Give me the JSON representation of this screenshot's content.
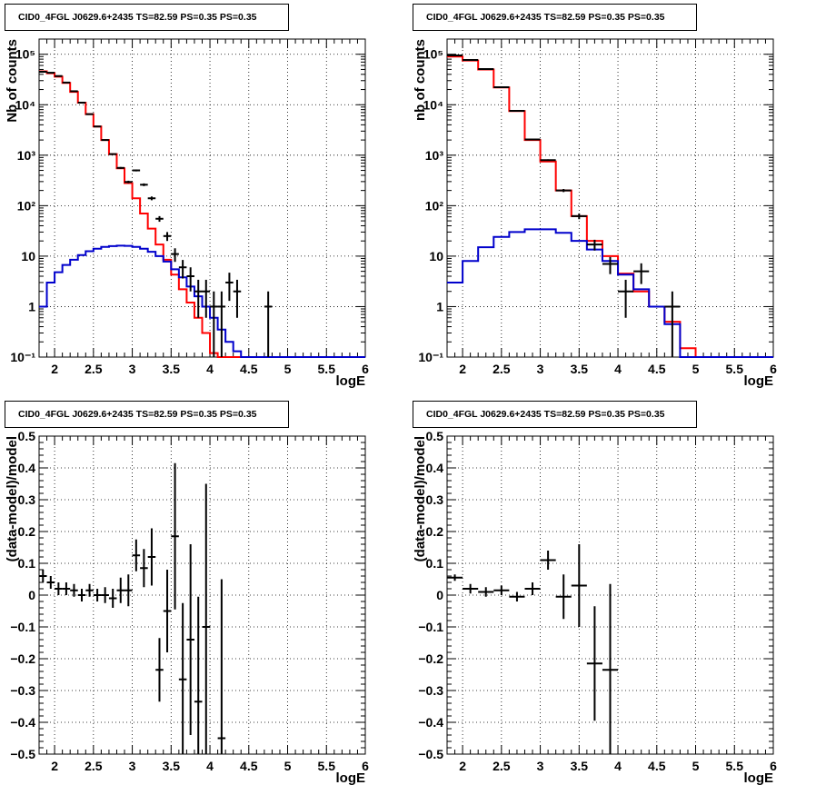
{
  "colors": {
    "data": "#000000",
    "total_model": "#ff0000",
    "component": "#0000cc",
    "grid": "#000000"
  },
  "chart_data": [
    {
      "type": "line",
      "title": "CID0_4FGL J0629.6+2435 TS=82.59 PS=0.35 PS=0.35",
      "xlabel": "logE",
      "ylabel": "Nb of counts",
      "xlim": [
        1.8,
        6.0
      ],
      "ylim": [
        0.1,
        200000
      ],
      "yscale": "log",
      "grid": true,
      "x_ticks": [
        "2",
        "2.5",
        "3",
        "3.5",
        "4",
        "4.5",
        "5",
        "5.5",
        "6"
      ],
      "y_ticks": [
        "10⁻¹",
        "1",
        "10",
        "10²",
        "10³",
        "10⁴",
        "10⁵"
      ],
      "series": [
        {
          "style": "hist",
          "color": "#ff0000",
          "bin_edges": [
            1.8,
            1.9,
            2.0,
            2.1,
            2.2,
            2.3,
            2.4,
            2.5,
            2.6,
            2.7,
            2.8,
            2.9,
            3.0,
            3.1,
            3.2,
            3.3,
            3.4,
            3.5,
            3.6,
            3.7,
            3.8,
            3.9,
            4.0,
            4.1,
            4.2,
            4.3,
            4.4,
            4.5,
            4.6,
            4.7,
            4.8,
            4.9,
            5.0,
            5.1,
            5.2,
            5.3,
            5.4,
            5.5,
            5.6,
            5.7,
            5.8,
            5.9,
            6.0
          ],
          "values": [
            46000,
            42000,
            36000,
            27000,
            18000,
            11000,
            6500,
            3700,
            2000,
            1050,
            550,
            280,
            140,
            70,
            35,
            17,
            8.5,
            4.3,
            2.2,
            1.2,
            0.6,
            0.3,
            0.12,
            0.1,
            0.1,
            0.1,
            0.1,
            0.1,
            0.1,
            0.1,
            0.1,
            0.1,
            0.1,
            0.1,
            0.1,
            0.1,
            0.1,
            0.1,
            0.1,
            0.1,
            0.1,
            0.1
          ]
        },
        {
          "style": "hist",
          "color": "#0000cc",
          "bin_edges": [
            1.8,
            1.9,
            2.0,
            2.1,
            2.2,
            2.3,
            2.4,
            2.5,
            2.6,
            2.7,
            2.8,
            2.9,
            3.0,
            3.1,
            3.2,
            3.3,
            3.4,
            3.5,
            3.6,
            3.7,
            3.8,
            3.9,
            4.0,
            4.1,
            4.2,
            4.3,
            4.4,
            4.5,
            4.6,
            4.7,
            4.8,
            4.9,
            5.0,
            5.1,
            5.2,
            5.3,
            5.4,
            5.5,
            5.6,
            5.7,
            5.8,
            5.9,
            6.0
          ],
          "values": [
            1.0,
            3.0,
            4.8,
            6.7,
            8.5,
            10.5,
            12.5,
            14.0,
            15.2,
            15.8,
            16.1,
            16.0,
            15.2,
            14.0,
            12.2,
            10.0,
            7.8,
            5.5,
            3.8,
            2.5,
            1.6,
            1.0,
            0.6,
            0.35,
            0.2,
            0.13,
            0.1,
            0.1,
            0.1,
            0.1,
            0.1,
            0.1,
            0.1,
            0.1,
            0.1,
            0.1,
            0.1,
            0.1,
            0.1,
            0.1,
            0.1,
            0.1
          ]
        },
        {
          "style": "points",
          "color": "#000000",
          "x": [
            1.85,
            1.95,
            2.05,
            2.15,
            2.25,
            2.35,
            2.45,
            2.55,
            2.65,
            2.75,
            2.85,
            2.95,
            3.05,
            3.15,
            3.25,
            3.35,
            3.45,
            3.55,
            3.65,
            3.75,
            3.85,
            3.95,
            4.05,
            4.15,
            4.25,
            4.35,
            4.75
          ],
          "y": [
            45000,
            43000,
            37000,
            27500,
            18500,
            11000,
            6500,
            3700,
            2000,
            1050,
            560,
            295,
            500,
            260,
            140,
            55,
            25,
            11,
            6,
            4,
            2,
            2,
            1,
            1,
            3,
            2,
            1
          ],
          "y_err": [
            210,
            200,
            190,
            160,
            135,
            105,
            80,
            60,
            45,
            32,
            24,
            17,
            22,
            16,
            12,
            7,
            5,
            3.3,
            2.4,
            2,
            1.4,
            1.4,
            1,
            1,
            1.7,
            1.4,
            1
          ],
          "x_err": 0.05
        }
      ]
    },
    {
      "type": "line",
      "title": "CID0_4FGL J0629.6+2435 TS=82.59 PS=0.35 PS=0.35",
      "xlabel": "logE",
      "ylabel": "nb of counts",
      "xlim": [
        1.8,
        6.0
      ],
      "ylim": [
        0.1,
        200000
      ],
      "yscale": "log",
      "grid": true,
      "x_ticks": [
        "2",
        "2.5",
        "3",
        "3.5",
        "4",
        "4.5",
        "5",
        "5.5",
        "6"
      ],
      "y_ticks": [
        "10⁻¹",
        "1",
        "10",
        "10²",
        "10³",
        "10⁴",
        "10⁵"
      ],
      "series": [
        {
          "style": "hist",
          "color": "#ff0000",
          "bin_edges": [
            1.8,
            2.0,
            2.2,
            2.4,
            2.6,
            2.8,
            3.0,
            3.2,
            3.4,
            3.6,
            3.8,
            4.0,
            4.2,
            4.4,
            4.6,
            4.8,
            5.0,
            5.2,
            5.4,
            5.6,
            5.8,
            6.0
          ],
          "values": [
            90000,
            75000,
            50000,
            22000,
            7500,
            2000,
            750,
            200,
            62,
            20,
            10,
            4.5,
            2.0,
            1.0,
            0.5,
            0.15,
            0.1,
            0.1,
            0.1,
            0.1,
            0.1
          ]
        },
        {
          "style": "hist",
          "color": "#0000cc",
          "bin_edges": [
            1.8,
            2.0,
            2.2,
            2.4,
            2.6,
            2.8,
            3.0,
            3.2,
            3.4,
            3.6,
            3.8,
            4.0,
            4.2,
            4.4,
            4.6,
            4.8,
            5.0,
            5.2,
            5.4,
            5.6,
            5.8,
            6.0
          ],
          "values": [
            3.0,
            8.0,
            15.0,
            24.0,
            30.0,
            34.0,
            34.0,
            29.0,
            20.0,
            13.5,
            8.0,
            4.3,
            2.2,
            1.0,
            0.45,
            0.1,
            0.1,
            0.1,
            0.1,
            0.1,
            0.1
          ]
        },
        {
          "style": "points",
          "color": "#000000",
          "x": [
            1.9,
            2.1,
            2.3,
            2.5,
            2.7,
            2.9,
            3.1,
            3.3,
            3.5,
            3.7,
            3.9,
            4.1,
            4.3,
            4.7
          ],
          "y": [
            95000,
            77000,
            51000,
            22200,
            7550,
            2050,
            800,
            200,
            62,
            17,
            7,
            2,
            5,
            1
          ],
          "y_err": [
            300,
            280,
            225,
            150,
            87,
            45,
            28,
            14,
            8,
            4.1,
            2.6,
            1.4,
            2.2,
            1
          ],
          "x_err": 0.1
        }
      ]
    },
    {
      "type": "scatter",
      "title": "CID0_4FGL J0629.6+2435 TS=82.59 PS=0.35 PS=0.35",
      "xlabel": "logE",
      "ylabel": "(data-model)/model",
      "xlim": [
        1.8,
        6.0
      ],
      "ylim": [
        -0.5,
        0.5
      ],
      "grid": true,
      "x_ticks": [
        "2",
        "2.5",
        "3",
        "3.5",
        "4",
        "4.5",
        "5",
        "5.5",
        "6"
      ],
      "y_ticks": [
        "−0.5",
        "−0.4",
        "−0.3",
        "−0.2",
        "−0.1",
        "0",
        "0.1",
        "0.2",
        "0.3",
        "0.4",
        "0.5"
      ],
      "series": [
        {
          "style": "points",
          "color": "#000000",
          "x": [
            1.85,
            1.95,
            2.05,
            2.15,
            2.25,
            2.35,
            2.45,
            2.55,
            2.65,
            2.75,
            2.85,
            2.95,
            3.05,
            3.15,
            3.25,
            3.35,
            3.45,
            3.55,
            3.65,
            3.75,
            3.85,
            3.95,
            4.15
          ],
          "y": [
            0.06,
            0.04,
            0.02,
            0.02,
            0.015,
            0.0,
            0.015,
            0.0,
            0.0,
            -0.01,
            0.015,
            0.015,
            0.125,
            0.085,
            0.12,
            -0.235,
            -0.05,
            0.185,
            -0.265,
            -0.14,
            -0.335,
            -0.1,
            -0.45
          ],
          "y_err": [
            0.02,
            0.02,
            0.02,
            0.02,
            0.02,
            0.02,
            0.02,
            0.02,
            0.025,
            0.03,
            0.04,
            0.05,
            0.05,
            0.06,
            0.09,
            0.1,
            0.13,
            0.23,
            0.24,
            0.3,
            0.33,
            0.45,
            0.5
          ],
          "x_err": 0.05
        }
      ]
    },
    {
      "type": "scatter",
      "title": "CID0_4FGL J0629.6+2435 TS=82.59 PS=0.35 PS=0.35",
      "xlabel": "logE",
      "ylabel": "(data-model)/model",
      "xlim": [
        1.8,
        6.0
      ],
      "ylim": [
        -0.5,
        0.5
      ],
      "grid": true,
      "x_ticks": [
        "2",
        "2.5",
        "3",
        "3.5",
        "4",
        "4.5",
        "5",
        "5.5",
        "6"
      ],
      "y_ticks": [
        "−0.5",
        "−0.4",
        "−0.3",
        "−0.2",
        "−0.1",
        "0",
        "0.1",
        "0.2",
        "0.3",
        "0.4",
        "0.5"
      ],
      "series": [
        {
          "style": "points",
          "color": "#000000",
          "x": [
            1.9,
            2.1,
            2.3,
            2.5,
            2.7,
            2.9,
            3.1,
            3.3,
            3.5,
            3.7,
            3.9
          ],
          "y": [
            0.055,
            0.02,
            0.01,
            0.015,
            -0.005,
            0.02,
            0.11,
            -0.005,
            0.03,
            -0.215,
            -0.235
          ],
          "y_err": [
            0.01,
            0.015,
            0.015,
            0.015,
            0.015,
            0.02,
            0.03,
            0.07,
            0.13,
            0.18,
            0.27
          ],
          "x_err": 0.1
        }
      ]
    }
  ]
}
